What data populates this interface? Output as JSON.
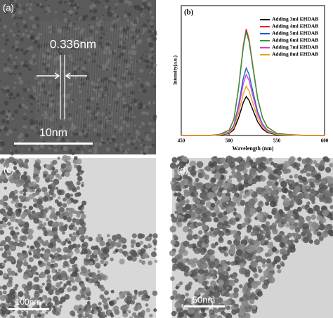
{
  "panels": {
    "a": {
      "label": "(a)",
      "lattice_spacing": "0.336nm",
      "scale_bar": "10nm"
    },
    "c": {
      "label": "(c)",
      "scale_bar": "100nm"
    },
    "d": {
      "label": "(d)",
      "scale_bar": "50nm"
    }
  },
  "chart_data": {
    "type": "line",
    "panel_label": "(b)",
    "xlabel": "Wavelength (nm)",
    "ylabel": "Intensity(a.u.)",
    "x": [
      450,
      480,
      490,
      500,
      505,
      510,
      515,
      518,
      521,
      525,
      530,
      535,
      540,
      550,
      560,
      580,
      600
    ],
    "xlim": [
      450,
      600
    ],
    "xticks": [
      450,
      500,
      550,
      600
    ],
    "ylim": [
      0,
      1
    ],
    "legend": "upper-right",
    "series": [
      {
        "name": "Adding 3ml EHDAB",
        "color": "#000000",
        "values": [
          0,
          0,
          0.003,
          0.015,
          0.045,
          0.135,
          0.255,
          0.3,
          0.27,
          0.195,
          0.105,
          0.051,
          0.024,
          0.006,
          0.003,
          0,
          0
        ]
      },
      {
        "name": "Adding 4ml EHDAB",
        "color": "#e8242a",
        "values": [
          0,
          0,
          0.008,
          0.041,
          0.123,
          0.369,
          0.697,
          0.82,
          0.738,
          0.533,
          0.287,
          0.139,
          0.066,
          0.016,
          0.008,
          0,
          0
        ]
      },
      {
        "name": "Adding 5ml EHDAB",
        "color": "#1f5fc8",
        "values": [
          0,
          0,
          0.005,
          0.026,
          0.078,
          0.234,
          0.442,
          0.52,
          0.468,
          0.338,
          0.182,
          0.088,
          0.042,
          0.01,
          0.005,
          0,
          0
        ]
      },
      {
        "name": "Adding 6ml EHDAB",
        "color": "#2a9a3a",
        "values": [
          0,
          0,
          0.008,
          0.04,
          0.12,
          0.36,
          0.68,
          0.8,
          0.72,
          0.52,
          0.28,
          0.136,
          0.064,
          0.016,
          0.008,
          0,
          0
        ]
      },
      {
        "name": "Adding 7ml EHDAB",
        "color": "#d040d0",
        "values": [
          0,
          0,
          0.005,
          0.024,
          0.071,
          0.212,
          0.4,
          0.47,
          0.423,
          0.306,
          0.165,
          0.08,
          0.038,
          0.009,
          0.005,
          0,
          0
        ]
      },
      {
        "name": "Adding 8ml EHDAB",
        "color": "#f0a020",
        "values": [
          0,
          0,
          0.004,
          0.019,
          0.057,
          0.171,
          0.323,
          0.38,
          0.342,
          0.247,
          0.133,
          0.065,
          0.03,
          0.008,
          0.004,
          0,
          0
        ]
      }
    ]
  }
}
